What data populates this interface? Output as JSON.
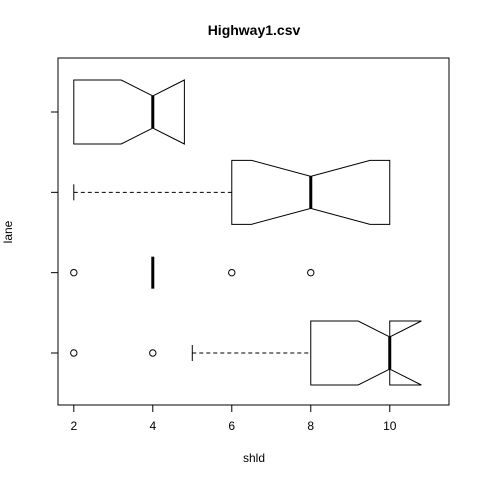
{
  "chart_data": {
    "type": "boxplot",
    "orientation": "horizontal",
    "notched": true,
    "title": "Highway1.csv",
    "xlabel": "shld",
    "ylabel": "lane",
    "xlim": [
      1.6,
      11.5
    ],
    "x_ticks": [
      2,
      4,
      6,
      8,
      10
    ],
    "grid": false,
    "groups": [
      {
        "q1": 8,
        "median": 10,
        "q3": 10,
        "notch_low": 9.2,
        "notch_high": 10.8,
        "whisker_low": 5,
        "whisker_high": 10,
        "outliers": [
          2,
          4
        ]
      },
      {
        "q1": 4,
        "median": 4,
        "q3": 4,
        "notch_low": 4,
        "notch_high": 4,
        "whisker_low": 4,
        "whisker_high": 4,
        "outliers": [
          2,
          6,
          8
        ]
      },
      {
        "q1": 6,
        "median": 8,
        "q3": 10,
        "notch_low": 6.5,
        "notch_high": 9.5,
        "whisker_low": 2,
        "whisker_high": 10,
        "outliers": []
      },
      {
        "q1": 2,
        "median": 4,
        "q3": 4.8,
        "notch_low": 3.2,
        "notch_high": 4.8,
        "whisker_low": 2,
        "whisker_high": 4.8,
        "outliers": []
      }
    ]
  }
}
